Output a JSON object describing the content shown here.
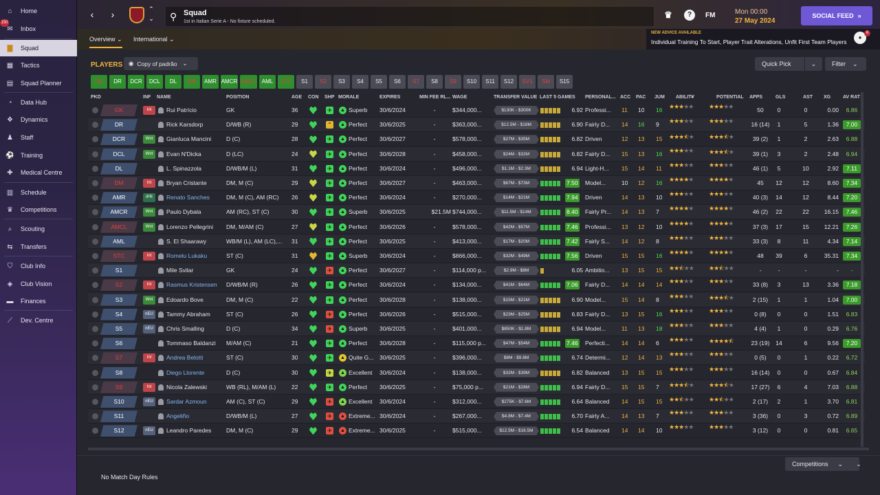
{
  "sidebar": {
    "inbox_badge": "150",
    "items": [
      {
        "label": "Home",
        "icon": "home-icon"
      },
      {
        "label": "Inbox",
        "icon": "inbox-icon"
      },
      {
        "label": "Squad",
        "icon": "shirt-icon"
      },
      {
        "label": "Tactics",
        "icon": "tactics-icon"
      },
      {
        "label": "Squad Planner",
        "icon": "planner-icon"
      },
      {
        "label": "Data Hub",
        "icon": "data-hub-icon"
      },
      {
        "label": "Dynamics",
        "icon": "dynamics-icon"
      },
      {
        "label": "Staff",
        "icon": "staff-icon"
      },
      {
        "label": "Training",
        "icon": "training-icon"
      },
      {
        "label": "Medical Centre",
        "icon": "medical-icon"
      },
      {
        "label": "Schedule",
        "icon": "schedule-icon"
      },
      {
        "label": "Competitions",
        "icon": "trophy-icon"
      },
      {
        "label": "Scouting",
        "icon": "scouting-icon"
      },
      {
        "label": "Transfers",
        "icon": "transfers-icon"
      },
      {
        "label": "Club Info",
        "icon": "club-info-icon"
      },
      {
        "label": "Club Vision",
        "icon": "club-vision-icon"
      },
      {
        "label": "Finances",
        "icon": "finances-icon"
      },
      {
        "label": "Dev. Centre",
        "icon": "dev-centre-icon"
      }
    ]
  },
  "header": {
    "title": "Squad",
    "subtitle": "1st in Italian Serie A - No fixture scheduled.",
    "fm_logo": "FM",
    "date_day": "Mon 00:00",
    "date_full": "27 May 2024",
    "social_feed": "SOCIAL FEED"
  },
  "subnav": {
    "tabs": [
      "Overview",
      "International"
    ]
  },
  "advice": {
    "title": "NEW ADVICE AVAILABLE",
    "text": "Individual Training To Start, Player Trait Alterations, Unfit First Team Players",
    "badge": "6"
  },
  "toolbar": {
    "players_label": "PLAYERS",
    "view_select": "Copy of padrão",
    "quick_pick": "Quick Pick",
    "filter": "Filter"
  },
  "position_chips": [
    {
      "label": "GK",
      "style": "gr"
    },
    {
      "label": "DR",
      "style": "g"
    },
    {
      "label": "DCR",
      "style": "g"
    },
    {
      "label": "DCL",
      "style": "g"
    },
    {
      "label": "DL",
      "style": "g"
    },
    {
      "label": "DM",
      "style": "gr"
    },
    {
      "label": "AMR",
      "style": "g"
    },
    {
      "label": "AMCR",
      "style": "g"
    },
    {
      "label": "AMCL",
      "style": "gr"
    },
    {
      "label": "AML",
      "style": "g"
    },
    {
      "label": "STC",
      "style": "gr"
    },
    {
      "label": "S1",
      "style": ""
    },
    {
      "label": "S2",
      "style": "red"
    },
    {
      "label": "S3",
      "style": ""
    },
    {
      "label": "S4",
      "style": ""
    },
    {
      "label": "S5",
      "style": ""
    },
    {
      "label": "S6",
      "style": ""
    },
    {
      "label": "S7",
      "style": "red"
    },
    {
      "label": "S8",
      "style": ""
    },
    {
      "label": "S9",
      "style": "red"
    },
    {
      "label": "S10",
      "style": ""
    },
    {
      "label": "S11",
      "style": ""
    },
    {
      "label": "S12",
      "style": ""
    },
    {
      "label": "SV1",
      "style": "red"
    },
    {
      "label": "SM",
      "style": "red"
    },
    {
      "label": "S15",
      "style": ""
    }
  ],
  "columns": [
    "PKD",
    "INF",
    "NAME",
    "POSITION",
    "AGE",
    "CON",
    "SHP",
    "MORALE",
    "EXPIRES",
    "MIN FEE RL...",
    "WAGE",
    "TRANSFER VALUE",
    "LAST 5 GAMES",
    "PERSONAL...",
    "ACC",
    "PAC",
    "JUM",
    "ABILITY",
    "POTENTIAL",
    "APPS",
    "GLS",
    "AST",
    "XG",
    "AV RAT"
  ],
  "players": [
    {
      "pkd": "GK",
      "pkd_red": true,
      "inf": "Int",
      "name": "Rui Patrício",
      "link": false,
      "pos": "GK",
      "age": "36",
      "con": "g",
      "shp": "g",
      "mor": "Superb",
      "exp": "30/6/2024",
      "minfee": "-",
      "wage": "$344,000...",
      "tv": "$130K - $300K",
      "l5": "yyyyy",
      "rating": "6.92",
      "rbox": false,
      "pers": "Professi...",
      "acc": "11",
      "pac": "10",
      "jum": "16",
      "ab": 3,
      "abh": 0,
      "po": 3,
      "poh": 0,
      "apps": "50",
      "gls": "0",
      "ast": "0",
      "xg": "0.00",
      "avr": "6.86",
      "avbox": false
    },
    {
      "pkd": "DR",
      "pkd_red": false,
      "inf": "",
      "name": "Rick Karsdorp",
      "link": false,
      "pos": "D/WB (R)",
      "age": "29",
      "con": "g",
      "shp": "o",
      "mor": "Perfect",
      "exp": "30/6/2025",
      "minfee": "-",
      "wage": "$363,000...",
      "tv": "$12.5M - $18M",
      "l5": "yyyyy",
      "rating": "6.90",
      "rbox": false,
      "pers": "Fairly D...",
      "acc": "14",
      "pac": "16",
      "jum": "9",
      "ab": 3,
      "abh": 0,
      "po": 3,
      "poh": 0,
      "apps": "16 (14)",
      "gls": "1",
      "ast": "5",
      "xg": "1.36",
      "avr": "7.00",
      "avbox": true
    },
    {
      "pkd": "DCR",
      "pkd_red": false,
      "inf": "Wnt",
      "name": "Gianluca Mancini",
      "link": false,
      "pos": "D (C)",
      "age": "28",
      "con": "g",
      "shp": "g",
      "mor": "Perfect",
      "exp": "30/6/2027",
      "minfee": "-",
      "wage": "$578,000...",
      "tv": "$27M - $35M",
      "l5": "yyyyy",
      "rating": "6.82",
      "rbox": false,
      "pers": "Driven",
      "acc": "12",
      "pac": "13",
      "jum": "15",
      "ab": 3,
      "abh": 1,
      "po": 3,
      "poh": 1,
      "apps": "39 (2)",
      "gls": "1",
      "ast": "2",
      "xg": "2.63",
      "avr": "6.88",
      "avbox": false
    },
    {
      "pkd": "DCL",
      "pkd_red": false,
      "inf": "Wnt",
      "name": "Evan N'Dicka",
      "link": false,
      "pos": "D (LC)",
      "age": "24",
      "con": "y",
      "shp": "g",
      "mor": "Perfect",
      "exp": "30/6/2028",
      "minfee": "-",
      "wage": "$458,000...",
      "tv": "$24M - $32M",
      "l5": "yyyyy",
      "rating": "6.82",
      "rbox": false,
      "pers": "Fairly D...",
      "acc": "15",
      "pac": "13",
      "jum": "16",
      "ab": 3,
      "abh": 0,
      "po": 3,
      "poh": 1,
      "apps": "39 (1)",
      "gls": "3",
      "ast": "2",
      "xg": "2.48",
      "avr": "6.94",
      "avbox": false
    },
    {
      "pkd": "DL",
      "pkd_red": false,
      "inf": "",
      "name": "L. Spinazzola",
      "link": false,
      "pos": "D/WB/M (L)",
      "age": "31",
      "con": "g",
      "shp": "g",
      "mor": "Perfect",
      "exp": "30/6/2024",
      "minfee": "-",
      "wage": "$496,000...",
      "tv": "$1.1M - $2.3M",
      "l5": "yyyyy",
      "rating": "6.94",
      "rbox": false,
      "pers": "Light-H...",
      "acc": "15",
      "pac": "14",
      "jum": "11",
      "ab": 3,
      "abh": 0,
      "po": 3,
      "poh": 0,
      "apps": "46 (1)",
      "gls": "5",
      "ast": "10",
      "xg": "2.92",
      "avr": "7.11",
      "avbox": true
    },
    {
      "pkd": "DM",
      "pkd_red": true,
      "inf": "Int",
      "name": "Bryan Cristante",
      "link": false,
      "pos": "DM, M (C)",
      "age": "29",
      "con": "y",
      "shp": "g",
      "mor": "Perfect",
      "exp": "30/6/2027",
      "minfee": "-",
      "wage": "$463,000...",
      "tv": "$67M - $73M",
      "l5": "ggggg",
      "rating": "7.50",
      "rbox": true,
      "pers": "Model...",
      "acc": "10",
      "pac": "12",
      "jum": "16",
      "ab": 4,
      "abh": 0,
      "po": 4,
      "poh": 0,
      "apps": "45",
      "gls": "12",
      "ast": "12",
      "xg": "8.60",
      "avr": "7.34",
      "avbox": true
    },
    {
      "pkd": "AMR",
      "pkd_red": false,
      "inf": "IPR",
      "name": "Renato Sanches",
      "link": true,
      "pos": "DM, M (C), AM (RC)",
      "age": "26",
      "con": "y",
      "shp": "g",
      "mor": "Perfect",
      "exp": "30/6/2024",
      "minfee": "-",
      "wage": "$270,000...",
      "tv": "$14M - $21M",
      "l5": "ggggg",
      "rating": "7.94",
      "rbox": true,
      "pers": "Driven",
      "acc": "14",
      "pac": "13",
      "jum": "10",
      "ab": 3,
      "abh": 0,
      "po": 3,
      "poh": 0,
      "apps": "40 (3)",
      "gls": "14",
      "ast": "12",
      "xg": "8.44",
      "avr": "7.20",
      "avbox": true
    },
    {
      "pkd": "AMCR",
      "pkd_red": false,
      "inf": "Wnt",
      "name": "Paulo Dybala",
      "link": false,
      "pos": "AM (RC), ST (C)",
      "age": "30",
      "con": "g",
      "shp": "g",
      "mor": "Superb",
      "exp": "30/6/2025",
      "minfee": "$21.5M",
      "wage": "$744,000...",
      "tv": "$11.5M - $14M",
      "l5": "ggggg",
      "rating": "8.40",
      "rbox": true,
      "pers": "Fairly Pr...",
      "acc": "14",
      "pac": "13",
      "jum": "7",
      "ab": 4,
      "abh": 0,
      "po": 4,
      "poh": 0,
      "apps": "46 (2)",
      "gls": "22",
      "ast": "22",
      "xg": "16.15",
      "avr": "7.46",
      "avbox": true
    },
    {
      "pkd": "AMCL",
      "pkd_red": true,
      "inf": "Wnt",
      "name": "Lorenzo Pellegrini",
      "link": false,
      "pos": "DM, M/AM (C)",
      "age": "27",
      "con": "y",
      "shp": "g",
      "mor": "Perfect",
      "exp": "30/6/2026",
      "minfee": "-",
      "wage": "$578,000...",
      "tv": "$42M - $57M",
      "l5": "ggggg",
      "rating": "7.46",
      "rbox": true,
      "pers": "Professi...",
      "acc": "13",
      "pac": "12",
      "jum": "10",
      "ab": 4,
      "abh": 0,
      "po": 4,
      "poh": 0,
      "apps": "37 (3)",
      "gls": "17",
      "ast": "15",
      "xg": "12.21",
      "avr": "7.26",
      "avbox": true
    },
    {
      "pkd": "AML",
      "pkd_red": false,
      "inf": "",
      "name": "S. El Shaarawy",
      "link": false,
      "pos": "WB/M (L), AM (LC),...",
      "age": "31",
      "con": "g",
      "shp": "g",
      "mor": "Perfect",
      "exp": "30/6/2025",
      "minfee": "-",
      "wage": "$413,000...",
      "tv": "$17M - $20M",
      "l5": "ggggg",
      "rating": "7.42",
      "rbox": true,
      "pers": "Fairly S...",
      "acc": "14",
      "pac": "12",
      "jum": "8",
      "ab": 3,
      "abh": 0,
      "po": 3,
      "poh": 0,
      "apps": "33 (3)",
      "gls": "8",
      "ast": "11",
      "xg": "4.34",
      "avr": "7.14",
      "avbox": true
    },
    {
      "pkd": "STC",
      "pkd_red": true,
      "inf": "Int",
      "name": "Romelu Lukaku",
      "link": true,
      "pos": "ST (C)",
      "age": "31",
      "con": "o",
      "shp": "g",
      "mor": "Superb",
      "exp": "30/6/2024",
      "minfee": "-",
      "wage": "$866,000...",
      "tv": "$32M - $49M",
      "l5": "ggggg",
      "rating": "7.56",
      "rbox": true,
      "pers": "Driven",
      "acc": "15",
      "pac": "15",
      "jum": "16",
      "ab": 4,
      "abh": 0,
      "po": 4,
      "poh": 0,
      "apps": "48",
      "gls": "39",
      "ast": "6",
      "xg": "35.31",
      "avr": "7.34",
      "avbox": true
    },
    {
      "pkd": "S1",
      "pkd_red": false,
      "inf": "",
      "name": "Mile Svilar",
      "link": false,
      "pos": "GK",
      "age": "24",
      "con": "g",
      "shp": "r",
      "mor": "Perfect",
      "exp": "30/6/2027",
      "minfee": "-",
      "wage": "$114,000 p...",
      "tv": "$2.9M - $8M",
      "l5": "y",
      "rating": "6.05",
      "rbox": false,
      "pers": "Ambitio...",
      "acc": "13",
      "pac": "15",
      "jum": "15",
      "ab": 2,
      "abh": 1,
      "po": 2,
      "poh": 1,
      "apps": "-",
      "gls": "-",
      "ast": "-",
      "xg": "-",
      "avr": "-",
      "avbox": false
    },
    {
      "pkd": "S2",
      "pkd_red": true,
      "inf": "Int",
      "name": "Rasmus Kristensen",
      "link": true,
      "pos": "D/WB/M (R)",
      "age": "26",
      "con": "g",
      "shp": "g",
      "mor": "Perfect",
      "exp": "30/6/2024",
      "minfee": "-",
      "wage": "$134,000...",
      "tv": "$41M - $64M",
      "l5": "ggggg",
      "rating": "7.06",
      "rbox": true,
      "pers": "Fairly D...",
      "acc": "14",
      "pac": "14",
      "jum": "14",
      "ab": 3,
      "abh": 0,
      "po": 3,
      "poh": 0,
      "apps": "33 (8)",
      "gls": "3",
      "ast": "13",
      "xg": "3.36",
      "avr": "7.18",
      "avbox": true
    },
    {
      "pkd": "S3",
      "pkd_red": false,
      "inf": "Wnt",
      "name": "Edoardo Bove",
      "link": false,
      "pos": "DM, M (C)",
      "age": "22",
      "con": "g",
      "shp": "g",
      "mor": "Perfect",
      "exp": "30/6/2028",
      "minfee": "-",
      "wage": "$138,000...",
      "tv": "$15M - $21M",
      "l5": "yyyyy",
      "rating": "6.90",
      "rbox": false,
      "pers": "Model...",
      "acc": "15",
      "pac": "14",
      "jum": "8",
      "ab": 3,
      "abh": 0,
      "po": 3,
      "poh": 1,
      "apps": "2 (15)",
      "gls": "1",
      "ast": "1",
      "xg": "1.04",
      "avr": "7.00",
      "avbox": true
    },
    {
      "pkd": "S4",
      "pkd_red": false,
      "inf": "nEU",
      "name": "Tammy Abraham",
      "link": false,
      "pos": "ST (C)",
      "age": "26",
      "con": "g",
      "shp": "r",
      "mor": "Perfect",
      "exp": "30/6/2026",
      "minfee": "-",
      "wage": "$515,000...",
      "tv": "$23M - $25M",
      "l5": "yyyyy",
      "rating": "6.83",
      "rbox": false,
      "pers": "Fairly D...",
      "acc": "13",
      "pac": "15",
      "jum": "16",
      "ab": 3,
      "abh": 0,
      "po": 3,
      "poh": 0,
      "apps": "0 (8)",
      "gls": "0",
      "ast": "0",
      "xg": "1.51",
      "avr": "6.83",
      "avbox": false
    },
    {
      "pkd": "S5",
      "pkd_red": false,
      "inf": "nEU",
      "name": "Chris Smalling",
      "link": false,
      "pos": "D (C)",
      "age": "34",
      "con": "g",
      "shp": "r",
      "mor": "Superb",
      "exp": "30/6/2025",
      "minfee": "-",
      "wage": "$401,000...",
      "tv": "$850K - $1.8M",
      "l5": "yyyyy",
      "rating": "6.94",
      "rbox": false,
      "pers": "Model...",
      "acc": "11",
      "pac": "13",
      "jum": "18",
      "ab": 3,
      "abh": 0,
      "po": 3,
      "poh": 0,
      "apps": "4 (4)",
      "gls": "1",
      "ast": "0",
      "xg": "0.29",
      "avr": "6.76",
      "avbox": false
    },
    {
      "pkd": "S6",
      "pkd_red": false,
      "inf": "",
      "name": "Tommaso Baldanzi",
      "link": false,
      "pos": "M/AM (C)",
      "age": "21",
      "con": "g",
      "shp": "g",
      "mor": "Perfect",
      "exp": "30/6/2028",
      "minfee": "-",
      "wage": "$115,000 p...",
      "tv": "$47M - $54M",
      "l5": "ggggg",
      "rating": "7.46",
      "rbox": true,
      "pers": "Perfecti...",
      "acc": "14",
      "pac": "14",
      "jum": "6",
      "ab": 3,
      "abh": 0,
      "po": 4,
      "poh": 1,
      "apps": "23 (19)",
      "gls": "14",
      "ast": "6",
      "xg": "9.56",
      "avr": "7.20",
      "avbox": true
    },
    {
      "pkd": "S7",
      "pkd_red": true,
      "inf": "Int",
      "name": "Andrea Belotti",
      "link": true,
      "pos": "ST (C)",
      "age": "30",
      "con": "g",
      "shp": "g",
      "mor": "Quite G...",
      "exp": "30/6/2025",
      "minfee": "-",
      "wage": "$396,000...",
      "tv": "$8M - $9.8M",
      "l5": "ggggg",
      "rating": "6.74",
      "rbox": false,
      "pers": "Determi...",
      "acc": "12",
      "pac": "14",
      "jum": "13",
      "ab": 3,
      "abh": 0,
      "po": 3,
      "poh": 0,
      "apps": "0 (5)",
      "gls": "0",
      "ast": "1",
      "xg": "0.22",
      "avr": "6.72",
      "avbox": false
    },
    {
      "pkd": "S8",
      "pkd_red": false,
      "inf": "",
      "name": "Diego Llorente",
      "link": true,
      "pos": "D (C)",
      "age": "30",
      "con": "g",
      "shp": "y",
      "mor": "Excellent",
      "exp": "30/6/2024",
      "minfee": "-",
      "wage": "$138,000...",
      "tv": "$32M - $39M",
      "l5": "yyyyy",
      "rating": "6.82",
      "rbox": false,
      "pers": "Balanced",
      "acc": "13",
      "pac": "15",
      "jum": "15",
      "ab": 3,
      "abh": 0,
      "po": 3,
      "poh": 0,
      "apps": "16 (14)",
      "gls": "0",
      "ast": "0",
      "xg": "0.67",
      "avr": "6.84",
      "avbox": false
    },
    {
      "pkd": "S9",
      "pkd_red": true,
      "inf": "Int",
      "name": "Nicola Zalewski",
      "link": false,
      "pos": "WB (RL), M/AM (L)",
      "age": "22",
      "con": "g",
      "shp": "g",
      "mor": "Perfect",
      "exp": "30/6/2025",
      "minfee": "-",
      "wage": "$75,000 p...",
      "tv": "$21M - $28M",
      "l5": "ggggg",
      "rating": "6.94",
      "rbox": false,
      "pers": "Fairly D...",
      "acc": "15",
      "pac": "15",
      "jum": "7",
      "ab": 3,
      "abh": 1,
      "po": 3,
      "poh": 1,
      "apps": "17 (27)",
      "gls": "6",
      "ast": "4",
      "xg": "7.03",
      "avr": "6.88",
      "avbox": false
    },
    {
      "pkd": "S10",
      "pkd_red": false,
      "inf": "nEU",
      "name": "Sardar Azmoun",
      "link": true,
      "pos": "AM (C), ST (C)",
      "age": "29",
      "con": "g",
      "shp": "r",
      "mor": "Excellent",
      "exp": "30/6/2024",
      "minfee": "-",
      "wage": "$312,000...",
      "tv": "$275K - $7.6M",
      "l5": "ggggg",
      "rating": "6.64",
      "rbox": false,
      "pers": "Balanced",
      "acc": "14",
      "pac": "15",
      "jum": "15",
      "ab": 2,
      "abh": 1,
      "po": 2,
      "poh": 1,
      "apps": "2 (17)",
      "gls": "2",
      "ast": "1",
      "xg": "3.70",
      "avr": "6.81",
      "avbox": false
    },
    {
      "pkd": "S11",
      "pkd_red": false,
      "inf": "",
      "name": "Angeliño",
      "link": true,
      "pos": "D/WB/M (L)",
      "age": "27",
      "con": "g",
      "shp": "r",
      "mor": "Extreme...",
      "exp": "30/6/2024",
      "minfee": "-",
      "wage": "$267,000...",
      "tv": "$4.8M - $7.4M",
      "l5": "ggggg",
      "rating": "6.70",
      "rbox": false,
      "pers": "Fairly A...",
      "acc": "14",
      "pac": "13",
      "jum": "7",
      "ab": 3,
      "abh": 0,
      "po": 3,
      "poh": 0,
      "apps": "3 (36)",
      "gls": "0",
      "ast": "3",
      "xg": "0.72",
      "avr": "6.89",
      "avbox": false
    },
    {
      "pkd": "S12",
      "pkd_red": false,
      "inf": "nEU",
      "name": "Leandro Paredes",
      "link": false,
      "pos": "DM, M (C)",
      "age": "29",
      "con": "g",
      "shp": "r",
      "mor": "Extreme...",
      "exp": "30/6/2025",
      "minfee": "-",
      "wage": "$515,000...",
      "tv": "$12.5M - $16.5M",
      "l5": "ggggg",
      "rating": "6.54",
      "rbox": false,
      "pers": "Balanced",
      "acc": "14",
      "pac": "14",
      "jum": "10",
      "ab": 3,
      "abh": 0,
      "po": 3,
      "poh": 0,
      "apps": "3 (12)",
      "gls": "0",
      "ast": "0",
      "xg": "0.81",
      "avr": "6.65",
      "avbox": false
    }
  ],
  "bottom": {
    "matchday": "No Match Day Rules",
    "competitions": "Competitions"
  },
  "colors": {
    "accent": "#f0b440",
    "social": "#6e58d6",
    "green_box": "#3a9a2a"
  }
}
